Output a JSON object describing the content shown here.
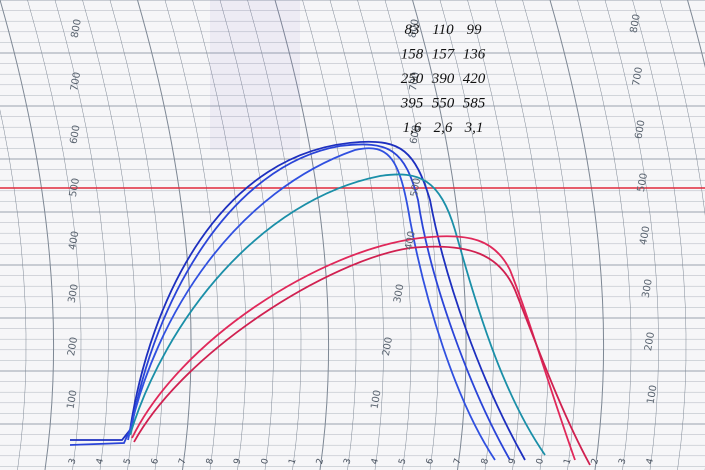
{
  "scale_labels": [
    "100",
    "200",
    "300",
    "400",
    "500",
    "600",
    "700",
    "800"
  ],
  "time_labels": [
    "3",
    "4",
    "5",
    "6",
    "7",
    "8",
    "9",
    "0",
    "1",
    "2",
    "3",
    "4",
    "5",
    "6",
    "7",
    "8",
    "9",
    "0",
    "1",
    "2",
    "3",
    "4"
  ],
  "notes": {
    "rows": [
      [
        "83",
        "110",
        "99"
      ],
      [
        "158",
        "157",
        "136"
      ],
      [
        "250",
        "390",
        "420"
      ],
      [
        "395",
        "550",
        "585"
      ],
      [
        "1,6",
        "2,6",
        "3,1"
      ]
    ]
  }
}
